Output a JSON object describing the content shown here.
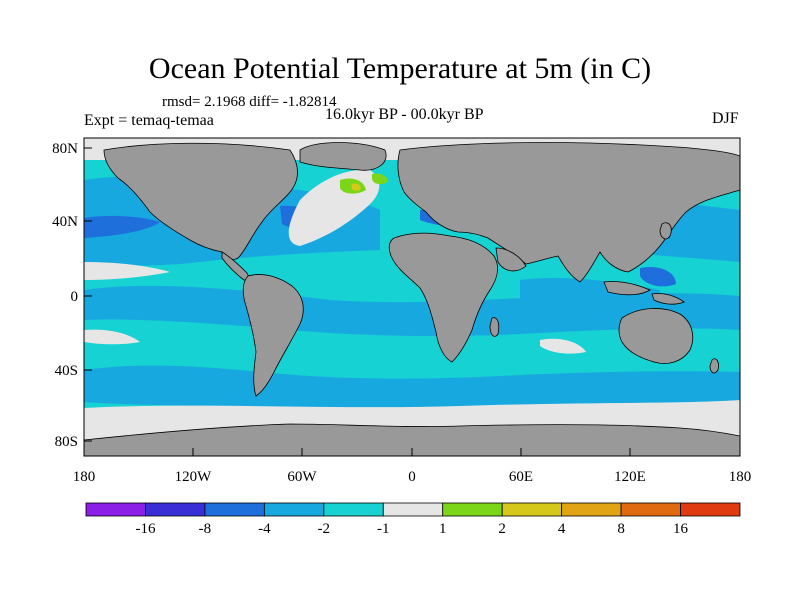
{
  "title": "Ocean Potential Temperature at 5m (in C)",
  "stats": "rmsd= 2.1968 diff= -1.82814",
  "experiment": "Expt = temaq-temaa",
  "period": "16.0kyr BP - 00.0kyr BP",
  "season": "DJF",
  "lat_ticks": [
    "80N",
    "40N",
    "0",
    "40S",
    "80S"
  ],
  "lon_ticks": [
    "180",
    "120W",
    "60W",
    "0",
    "60E",
    "120E",
    "180"
  ],
  "colorbar": {
    "colors": [
      "#8c1fe6",
      "#3a2fd6",
      "#1e6fdc",
      "#18a8e0",
      "#16d2d2",
      "#e6e6e6",
      "#7bd61a",
      "#d6c81a",
      "#e0a414",
      "#e06a10",
      "#e03a10"
    ],
    "labels": [
      "-16",
      "-8",
      "-4",
      "-2",
      "-1",
      "1",
      "2",
      "4",
      "8",
      "16"
    ]
  },
  "colors": {
    "land": "#999999",
    "coastline": "#000000"
  }
}
